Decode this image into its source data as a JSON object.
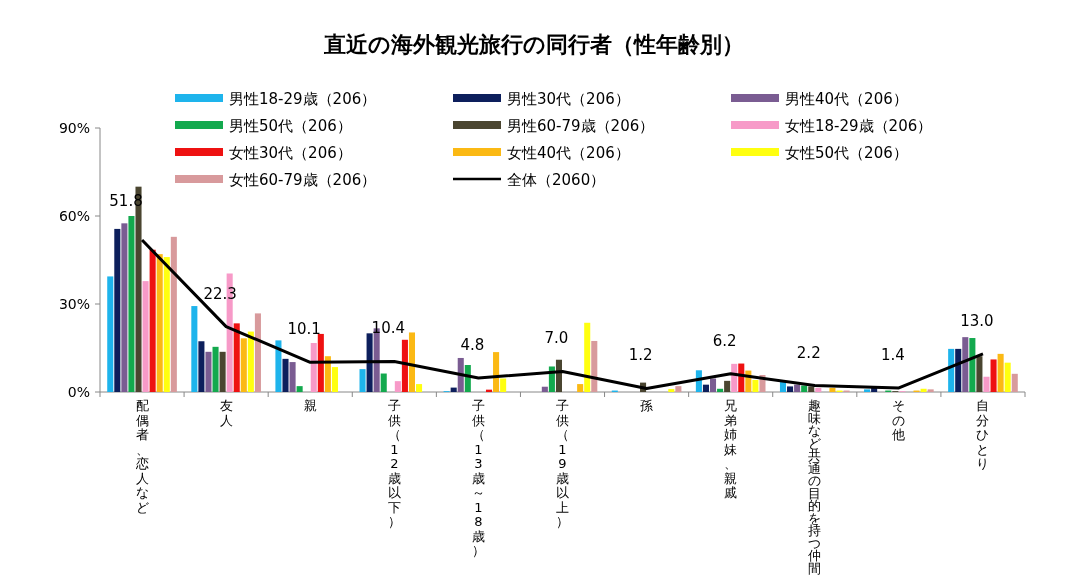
{
  "chart_data": {
    "type": "bar",
    "title": "直近の海外観光旅行の同行者（性年齢別）",
    "categories": [
      "配偶者、恋人など",
      "友人",
      "親",
      "子供（12歳以下）",
      "子供（13歳～18歳）",
      "子供（19歳以上）",
      "孫",
      "兄弟姉妹、親戚",
      "趣味など共通の目的を持つ仲間",
      "その他",
      "自分ひとり"
    ],
    "ylim": [
      0,
      90
    ],
    "yticks": [
      {
        "value": 0,
        "label": "0%"
      },
      {
        "value": 30,
        "label": "30%"
      },
      {
        "value": 60,
        "label": "60%"
      },
      {
        "value": 90,
        "label": "90%"
      }
    ],
    "grid": false,
    "legend": "top",
    "series": [
      {
        "name": "男性18-29歳（206）",
        "color": "#1eb4ec",
        "values": [
          39.4,
          29.3,
          17.6,
          7.8,
          0.3,
          0,
          0.5,
          7.4,
          3.4,
          0.9,
          14.7
        ]
      },
      {
        "name": "男性30代（206）",
        "color": "#0d1f5c",
        "values": [
          55.6,
          17.3,
          11.3,
          20,
          1.5,
          0,
          0,
          2.5,
          1.9,
          1.4,
          14.7
        ]
      },
      {
        "name": "男性40代（206）",
        "color": "#7a5c92",
        "values": [
          57.5,
          13.7,
          10.2,
          21.7,
          11.6,
          1.8,
          0,
          4.6,
          2.5,
          null,
          18.7
        ]
      },
      {
        "name": "男性50代（206）",
        "color": "#13a94e",
        "values": [
          60,
          15.4,
          2,
          6.3,
          9.2,
          8.7,
          0,
          1.1,
          2.2,
          0.5,
          18.4
        ]
      },
      {
        "name": "男性60-79歳（206）",
        "color": "#4a4530",
        "values": [
          70,
          13.7,
          0,
          0,
          0,
          11,
          3.2,
          3.8,
          1.9,
          0.3,
          12.2
        ]
      },
      {
        "name": "女性18-29歳（206）",
        "color": "#f79ac8",
        "values": [
          37.8,
          40.4,
          16.7,
          3.7,
          0,
          0,
          0,
          9.6,
          1.4,
          0.3,
          5.2
        ]
      },
      {
        "name": "女性30代（206）",
        "color": "#ee1111",
        "values": [
          48.5,
          23.4,
          19.8,
          17.8,
          0.8,
          0,
          0,
          9.7,
          0,
          0,
          11.1
        ]
      },
      {
        "name": "女性40代（206）",
        "color": "#fbb914",
        "values": [
          47,
          18.3,
          12.2,
          20.3,
          13.6,
          2.7,
          0,
          7.3,
          1.4,
          0.5,
          13
        ]
      },
      {
        "name": "女性50代（206）",
        "color": "#ffff10",
        "values": [
          46,
          20.6,
          8.5,
          2.7,
          4.6,
          23.6,
          1,
          4.1,
          0.5,
          1.1,
          10
        ]
      },
      {
        "name": "女性60-79歳（206）",
        "color": "#d89a9c",
        "values": [
          52.9,
          26.8,
          0,
          0,
          0,
          17.4,
          2,
          5.8,
          0.5,
          0.9,
          6.2
        ]
      },
      {
        "name": "全体（2060）",
        "type": "line",
        "color": "#000000",
        "values": [
          51.8,
          22.3,
          10.1,
          10.4,
          4.8,
          7.0,
          1.2,
          6.2,
          2.2,
          1.4,
          13.0
        ],
        "value_labels": [
          "51.8",
          "22.3",
          "10.1",
          "10.4",
          "4.8",
          "7.0",
          "1.2",
          "6.2",
          "2.2",
          "1.4",
          "13.0"
        ]
      }
    ]
  }
}
